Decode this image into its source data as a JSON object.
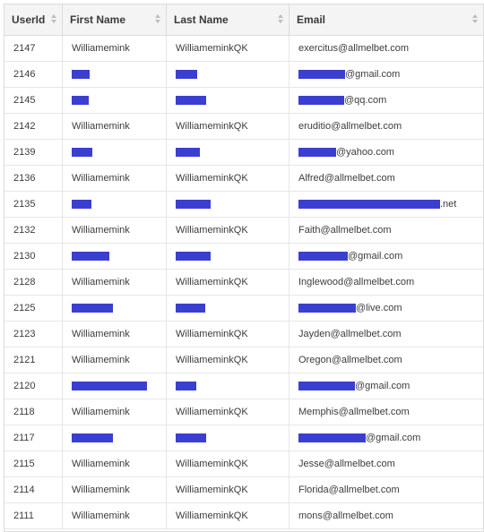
{
  "table": {
    "columns": [
      "UserId",
      "First Name",
      "Last Name",
      "Email"
    ],
    "rows": [
      {
        "id": "2147",
        "first": "Williamemink",
        "last": "WilliameminkQK",
        "email": "exercitus@allmelbet.com",
        "redact": null
      },
      {
        "id": "2146",
        "first": "",
        "last": "",
        "email": "@gmail.com",
        "redact": {
          "first": 20,
          "last": 24,
          "email": 52
        }
      },
      {
        "id": "2145",
        "first": "",
        "last": "",
        "email": "@qq.com",
        "redact": {
          "first": 19,
          "last": 34,
          "email": 51
        }
      },
      {
        "id": "2142",
        "first": "Williamemink",
        "last": "WilliameminkQK",
        "email": "eruditio@allmelbet.com",
        "redact": null
      },
      {
        "id": "2139",
        "first": "",
        "last": "",
        "email": "@yahoo.com",
        "redact": {
          "first": 23,
          "last": 27,
          "email": 42
        }
      },
      {
        "id": "2136",
        "first": "Williamemink",
        "last": "WilliameminkQK",
        "email": "Alfred@allmelbet.com",
        "redact": null
      },
      {
        "id": "2135",
        "first": "",
        "last": "",
        "email": ".net",
        "redact": {
          "first": 22,
          "last": 39,
          "email": 158
        }
      },
      {
        "id": "2132",
        "first": "Williamemink",
        "last": "WilliameminkQK",
        "email": "Faith@allmelbet.com",
        "redact": null
      },
      {
        "id": "2130",
        "first": "",
        "last": "",
        "email": "@gmail.com",
        "redact": {
          "first": 42,
          "last": 39,
          "email": 55
        }
      },
      {
        "id": "2128",
        "first": "Williamemink",
        "last": "WilliameminkQK",
        "email": "Inglewood@allmelbet.com",
        "redact": null
      },
      {
        "id": "2125",
        "first": "",
        "last": "",
        "email": "@live.com",
        "redact": {
          "first": 46,
          "last": 33,
          "email": 64
        }
      },
      {
        "id": "2123",
        "first": "Williamemink",
        "last": "WilliameminkQK",
        "email": "Jayden@allmelbet.com",
        "redact": null
      },
      {
        "id": "2121",
        "first": "Williamemink",
        "last": "WilliameminkQK",
        "email": "Oregon@allmelbet.com",
        "redact": null
      },
      {
        "id": "2120",
        "first": "",
        "last": "",
        "email": "@gmail.com",
        "redact": {
          "first": 84,
          "last": 23,
          "email": 63
        }
      },
      {
        "id": "2118",
        "first": "Williamemink",
        "last": "WilliameminkQK",
        "email": "Memphis@allmelbet.com",
        "redact": null
      },
      {
        "id": "2117",
        "first": "",
        "last": "",
        "email": "@gmail.com",
        "redact": {
          "first": 46,
          "last": 34,
          "email": 75
        }
      },
      {
        "id": "2115",
        "first": "Williamemink",
        "last": "WilliameminkQK",
        "email": "Jesse@allmelbet.com",
        "redact": null
      },
      {
        "id": "2114",
        "first": "Williamemink",
        "last": "WilliameminkQK",
        "email": "Florida@allmelbet.com",
        "redact": null
      },
      {
        "id": "2111",
        "first": "Williamemink",
        "last": "WilliameminkQK",
        "email": "mons@allmelbet.com",
        "redact": null
      }
    ]
  },
  "icons": {
    "sort": "sort-arrows-icon"
  },
  "colors": {
    "header_bg": "#f4f4f5",
    "border": "#dcdcdc",
    "redaction": "#3b3fd0"
  }
}
